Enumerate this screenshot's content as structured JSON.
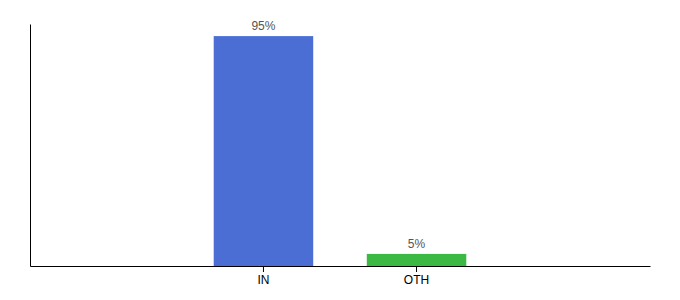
{
  "chart_data": {
    "type": "bar",
    "categories": [
      "IN",
      "OTH"
    ],
    "values": [
      95,
      5
    ],
    "value_labels": [
      "95%",
      "5%"
    ],
    "colors": [
      "#4A6ED4",
      "#3CB943"
    ],
    "ylim": [
      0,
      100
    ],
    "data_labels": true,
    "tick_labels": "x"
  }
}
